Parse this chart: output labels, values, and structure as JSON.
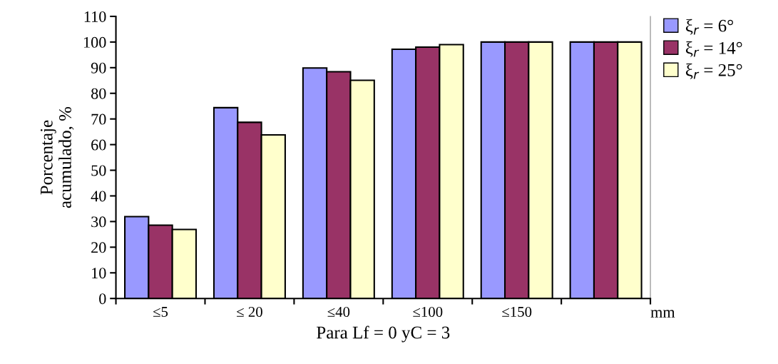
{
  "chart_data": {
    "type": "bar",
    "categories": [
      "≤5",
      "≤ 20",
      "≤40",
      "≤100",
      "≤150",
      null
    ],
    "series": [
      {
        "name": "ξ$_{r}$ = 6°",
        "color": "#9999ff",
        "values": [
          31.9,
          74.4,
          89.9,
          97.2,
          100,
          100
        ]
      },
      {
        "name": "ξ$_{r}$ = 14°",
        "color": "#993366",
        "values": [
          28.6,
          68.7,
          88.4,
          98.0,
          100,
          100
        ]
      },
      {
        "name": "ξ$_{r}$ = 25°",
        "color": "#ffffcc",
        "values": [
          26.9,
          63.8,
          85.1,
          99.0,
          100,
          100
        ]
      }
    ],
    "xlabel": "Para Lf = 0 yC = 3",
    "ylabel": "Porcentaje\nacumulado, %",
    "annotations": [
      "mm"
    ],
    "ylim": [
      0,
      110
    ],
    "yticks": [
      0,
      10,
      20,
      30,
      40,
      50,
      60,
      70,
      80,
      90,
      100,
      110
    ],
    "grid": false,
    "legend": "top right"
  }
}
